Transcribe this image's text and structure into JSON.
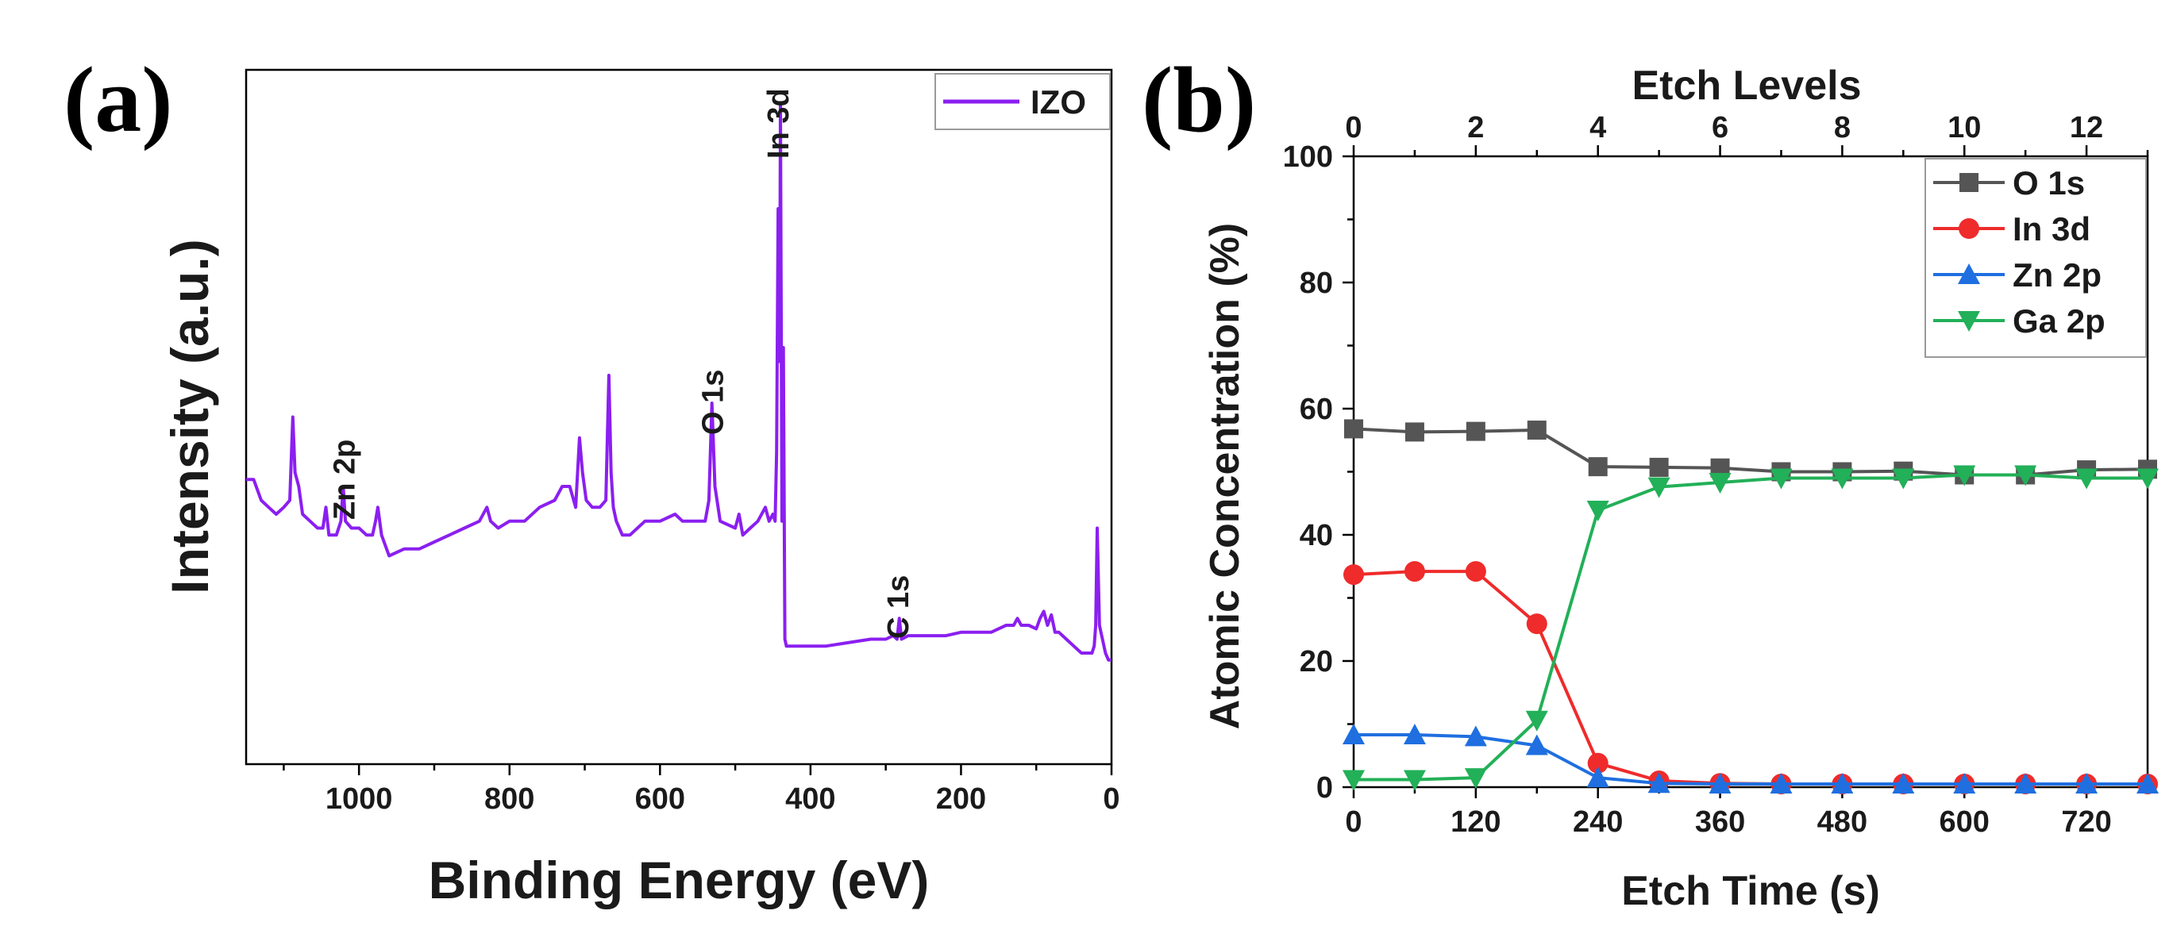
{
  "chart_data": [
    {
      "panel_label": "(a)",
      "type": "line",
      "xlabel": "Binding Energy (eV)",
      "ylabel": "Intensity (a.u.)",
      "xlim": [
        1150,
        0
      ],
      "ylim": [
        0,
        100
      ],
      "x_ticks": [
        1000,
        800,
        600,
        400,
        200,
        0
      ],
      "x_reversed": true,
      "y_ticks_shown": false,
      "grid": false,
      "legend_position": "top-right",
      "color": "#8b1ff0",
      "series": [
        {
          "name": "IZO",
          "x": [
            1150,
            1140,
            1130,
            1120,
            1110,
            1100,
            1092,
            1088,
            1085,
            1080,
            1075,
            1065,
            1055,
            1048,
            1044,
            1040,
            1030,
            1024,
            1021,
            1018,
            1010,
            1000,
            990,
            982,
            978,
            975,
            970,
            960,
            940,
            920,
            900,
            880,
            860,
            840,
            830,
            825,
            815,
            800,
            780,
            760,
            740,
            730,
            720,
            712,
            707,
            703,
            698,
            690,
            680,
            672,
            668,
            665,
            662,
            658,
            650,
            640,
            620,
            600,
            580,
            570,
            560,
            540,
            535,
            531,
            527,
            520,
            500,
            495,
            490,
            480,
            470,
            460,
            455,
            450,
            447,
            445,
            443,
            441,
            440,
            438,
            436,
            434,
            432,
            420,
            400,
            380,
            350,
            320,
            300,
            290,
            285,
            282,
            279,
            270,
            250,
            220,
            200,
            180,
            160,
            140,
            130,
            125,
            120,
            110,
            100,
            95,
            90,
            85,
            80,
            75,
            70,
            60,
            50,
            40,
            30,
            26,
            23,
            21,
            19,
            16,
            12,
            8,
            4,
            0
          ],
          "y": [
            41,
            41,
            38,
            37,
            36,
            37,
            38,
            50,
            42,
            40,
            36,
            35,
            34,
            34,
            37,
            33,
            33,
            35,
            40,
            35,
            34,
            34,
            33,
            33,
            35,
            37,
            33,
            30,
            31,
            31,
            32,
            33,
            34,
            35,
            37,
            35,
            34,
            35,
            35,
            37,
            38,
            40,
            40,
            37,
            47,
            42,
            38,
            37,
            37,
            38,
            56,
            42,
            37,
            35,
            33,
            33,
            35,
            35,
            36,
            35,
            35,
            35,
            38,
            52,
            40,
            35,
            34,
            36,
            33,
            34,
            35,
            37,
            35,
            36,
            35,
            45,
            80,
            58,
            95,
            35,
            60,
            18,
            17,
            17,
            17,
            17,
            17.5,
            18,
            18,
            18.5,
            18,
            21,
            18,
            18.5,
            18.5,
            18.5,
            19,
            19,
            19,
            20,
            20,
            21,
            20,
            20,
            19.5,
            21,
            22,
            20,
            21.5,
            19,
            19,
            18,
            17,
            16,
            16,
            16,
            17,
            20,
            34,
            20,
            18,
            16,
            15,
            15
          ]
        }
      ],
      "annotations": [
        {
          "text": "Zn 2p",
          "x": 1021
        },
        {
          "text": "O 1s",
          "x": 531
        },
        {
          "text": "In 3d",
          "x": 444
        },
        {
          "text": "C 1s",
          "x": 285
        }
      ]
    },
    {
      "panel_label": "(b)",
      "type": "line",
      "xlabel": "Etch Time (s)",
      "ylabel": "Atomic Concentration (%)",
      "x2label": "Etch Levels",
      "xlim": [
        0,
        780
      ],
      "ylim": [
        0,
        100
      ],
      "x_ticks": [
        0,
        120,
        240,
        360,
        480,
        600,
        720
      ],
      "x2_ticks": [
        0,
        2,
        4,
        6,
        8,
        10,
        12
      ],
      "x2_scale_seconds_per_level": 60,
      "y_ticks": [
        0,
        20,
        40,
        60,
        80,
        100
      ],
      "grid": false,
      "legend_position": "top-right",
      "x": [
        0,
        60,
        120,
        180,
        240,
        300,
        360,
        420,
        480,
        540,
        600,
        660,
        720,
        780
      ],
      "series": [
        {
          "name": "O 1s",
          "color": "#555555",
          "marker": "square",
          "values": [
            56.8,
            56.3,
            56.4,
            56.6,
            50.8,
            50.7,
            50.6,
            50.0,
            50.0,
            50.1,
            49.5,
            49.5,
            50.3,
            50.4
          ]
        },
        {
          "name": "In 3d",
          "color": "#ef2b2b",
          "marker": "circle",
          "values": [
            33.7,
            34.2,
            34.2,
            25.9,
            3.8,
            1.0,
            0.6,
            0.5,
            0.5,
            0.5,
            0.5,
            0.5,
            0.5,
            0.5
          ]
        },
        {
          "name": "Zn 2p",
          "color": "#1f6fe0",
          "marker": "triangle-up",
          "values": [
            8.3,
            8.3,
            8.0,
            6.6,
            1.5,
            0.6,
            0.5,
            0.5,
            0.5,
            0.5,
            0.5,
            0.5,
            0.5,
            0.5
          ]
        },
        {
          "name": "Ga 2p",
          "color": "#22b058",
          "marker": "triangle-down",
          "values": [
            1.2,
            1.2,
            1.5,
            10.6,
            43.9,
            47.6,
            48.3,
            49.0,
            49.0,
            49.0,
            49.5,
            49.5,
            49.0,
            49.0
          ]
        }
      ]
    }
  ]
}
